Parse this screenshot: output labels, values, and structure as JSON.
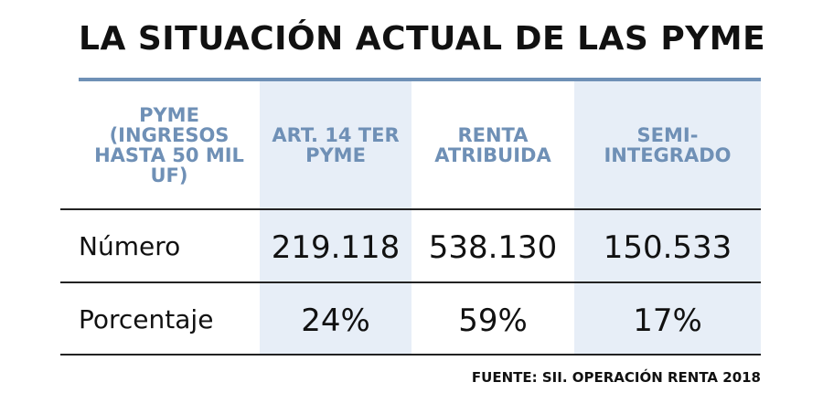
{
  "title": "LA SITUACIÓN ACTUAL DE LAS PYME",
  "table": {
    "headers": [
      "PYME (INGRESOS HASTA 50 MIL UF)",
      "ART. 14 TER PYME",
      "RENTA ATRIBUIDA",
      "SEMI- INTEGRADO"
    ],
    "rows": [
      {
        "label": "Número",
        "values": [
          "219.118",
          "538.130",
          "150.533"
        ]
      },
      {
        "label": "Porcentaje",
        "values": [
          "24%",
          "59%",
          "17%"
        ]
      }
    ]
  },
  "source": "FUENTE: SII. OPERACIÓN RENTA 2018",
  "colors": {
    "header_text": "#6f90b6",
    "shaded_column": "#e7eef7",
    "top_rule": "#6f90b6"
  }
}
